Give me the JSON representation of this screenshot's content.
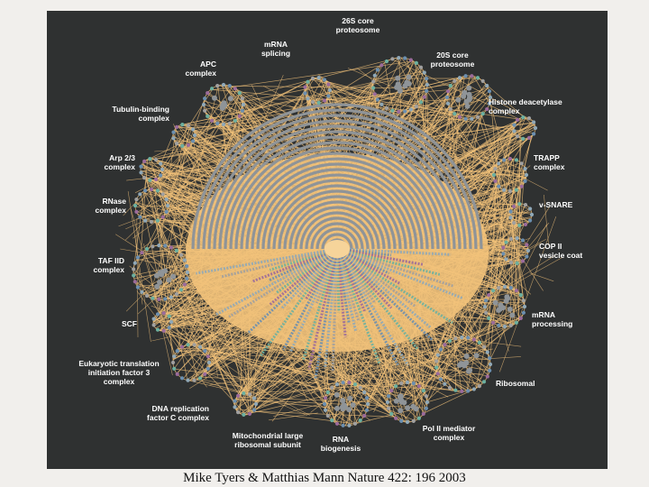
{
  "figure": {
    "background": "#2f3131",
    "edge_color": "#f2c27a",
    "node_colors": [
      "#8fa8b8",
      "#6b8fb0",
      "#9b6b9b",
      "#6bb0a0",
      "#a0a0a0"
    ],
    "labels": {
      "proteasome26s": "26S core\nproteosome",
      "mrna_splicing": "mRNA\nsplicing",
      "proteasome20s": "20S core\nproteosome",
      "apc": "APC\ncomplex",
      "histone": "Histone deacetylase\ncomplex",
      "tubulin": "Tubulin-binding\ncomplex",
      "trapp": "TRAPP\ncomplex",
      "arp": "Arp 2/3\ncomplex",
      "vsnare": "v-SNARE",
      "rnase": "RNase\ncomplex",
      "copii": "COP II\nvesicle coat",
      "tafiid": "TAF IID\ncomplex",
      "mrna_processing": "mRNA\nprocessing",
      "scf": "SCF",
      "eif3": "Eukaryotic translation\ninitiation factor 3\ncomplex",
      "ribosomal": "Ribosomal",
      "dna_rep": "DNA replication\nfactor C complex",
      "mito": "Mitochondrial large\nribosomal subunit",
      "rna_bio": "RNA\nbiogenesis",
      "polii": "Pol II mediator\ncomplex"
    }
  },
  "caption": "Mike Tyers & Matthias Mann Nature 422: 196 2003"
}
